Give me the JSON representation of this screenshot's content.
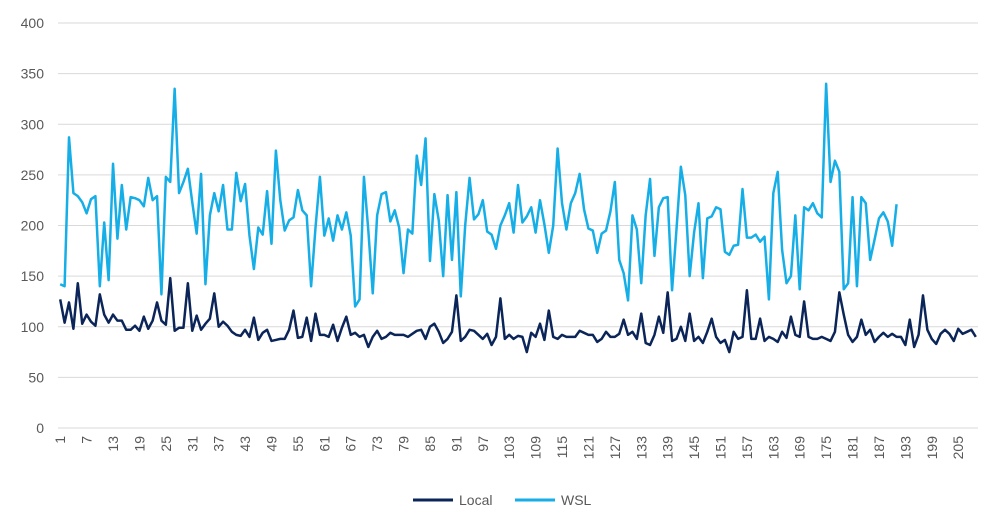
{
  "chart_data": {
    "type": "line",
    "title": "",
    "xlabel": "",
    "ylabel": "",
    "ylim": [
      0,
      400
    ],
    "yticks": [
      0,
      50,
      100,
      150,
      200,
      250,
      300,
      350,
      400
    ],
    "xtick_labels": [
      "1",
      "7",
      "13",
      "19",
      "25",
      "31",
      "37",
      "43",
      "49",
      "55",
      "61",
      "67",
      "73",
      "79",
      "85",
      "91",
      "97",
      "103",
      "109",
      "115",
      "121",
      "127",
      "133",
      "139",
      "145",
      "151",
      "157",
      "163",
      "169",
      "175",
      "181",
      "187",
      "193",
      "199",
      "205"
    ],
    "grid": "horizontal",
    "legend_position": "bottom",
    "series": [
      {
        "name": "Local",
        "color": "#0b2559",
        "values": [
          127,
          104,
          124,
          98,
          143,
          103,
          112,
          105,
          101,
          132,
          112,
          104,
          112,
          106,
          106,
          97,
          97,
          101,
          96,
          110,
          98,
          106,
          124,
          106,
          102,
          148,
          96,
          99,
          99,
          143,
          96,
          111,
          97,
          103,
          108,
          133,
          100,
          105,
          101,
          95,
          92,
          91,
          97,
          90,
          109,
          87,
          94,
          97,
          86,
          87,
          88,
          88,
          97,
          116,
          89,
          90,
          109,
          86,
          113,
          92,
          92,
          90,
          102,
          86,
          99,
          110,
          92,
          94,
          90,
          92,
          80,
          90,
          96,
          88,
          90,
          94,
          92,
          92,
          92,
          90,
          93,
          96,
          97,
          88,
          100,
          103,
          95,
          84,
          88,
          95,
          131,
          86,
          90,
          97,
          96,
          92,
          88,
          93,
          82,
          90,
          128,
          88,
          92,
          88,
          91,
          90,
          75,
          94,
          90,
          103,
          87,
          116,
          90,
          88,
          92,
          90,
          90,
          90,
          96,
          94,
          92,
          92,
          85,
          88,
          95,
          90,
          90,
          93,
          107,
          92,
          95,
          88,
          113,
          84,
          82,
          92,
          110,
          94,
          134,
          86,
          88,
          100,
          86,
          113,
          86,
          90,
          84,
          95,
          108,
          90,
          84,
          87,
          75,
          95,
          88,
          90,
          136,
          88,
          88,
          108,
          86,
          90,
          88,
          85,
          95,
          89,
          110,
          92,
          90,
          125,
          90,
          88,
          88,
          90,
          88,
          86,
          95,
          134,
          112,
          92,
          85,
          90,
          107,
          92,
          97,
          85,
          90,
          94,
          90,
          93,
          90,
          90,
          82,
          107,
          80,
          92,
          131,
          97,
          88,
          83,
          93,
          97,
          93,
          86,
          98,
          93,
          95,
          97,
          90
        ],
        "y_range_note": "approx"
      },
      {
        "name": "WSL",
        "color": "#16aee6",
        "values": [
          142,
          140,
          287,
          232,
          229,
          223,
          212,
          226,
          229,
          140,
          203,
          146,
          261,
          187,
          240,
          196,
          228,
          227,
          225,
          219,
          247,
          225,
          229,
          132,
          248,
          243,
          335,
          232,
          243,
          256,
          223,
          192,
          251,
          142,
          210,
          232,
          214,
          240,
          196,
          196,
          252,
          224,
          241,
          190,
          157,
          198,
          191,
          234,
          182,
          274,
          225,
          195,
          205,
          208,
          235,
          215,
          210,
          140,
          198,
          248,
          190,
          207,
          185,
          210,
          196,
          213,
          190,
          120,
          127,
          248,
          195,
          133,
          210,
          231,
          233,
          204,
          215,
          198,
          153,
          196,
          192,
          269,
          240,
          286,
          165,
          231,
          205,
          150,
          230,
          166,
          233,
          130,
          200,
          247,
          206,
          211,
          225,
          194,
          191,
          177,
          200,
          210,
          222,
          193,
          240,
          203,
          209,
          218,
          193,
          225,
          201,
          173,
          200,
          276,
          222,
          196,
          222,
          232,
          251,
          216,
          197,
          195,
          173,
          192,
          195,
          214,
          243,
          166,
          153,
          126,
          210,
          196,
          143,
          210,
          246,
          170,
          218,
          227,
          228,
          136,
          196,
          258,
          230,
          150,
          193,
          222,
          148,
          207,
          209,
          218,
          216,
          174,
          171,
          180,
          181,
          236,
          188,
          188,
          191,
          184,
          189,
          127,
          232,
          253,
          176,
          143,
          150,
          210,
          137,
          218,
          215,
          222,
          212,
          208,
          340,
          243,
          264,
          253,
          137,
          143,
          228,
          140,
          228,
          222,
          166,
          186,
          207,
          213,
          204,
          180,
          221
        ],
        "y_range_note": "approx"
      }
    ]
  }
}
